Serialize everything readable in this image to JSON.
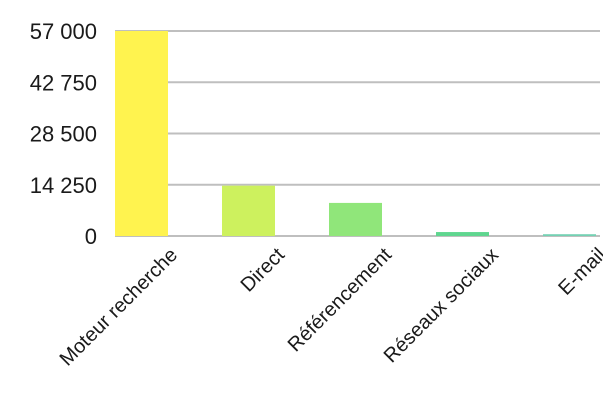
{
  "chart_data": {
    "type": "bar",
    "categories": [
      "Moteur recherche",
      "Direct",
      "Référencement",
      "Réseaux sociaux",
      "E-mail"
    ],
    "values": [
      57000,
      14000,
      9200,
      1100,
      500
    ],
    "ylim": [
      0,
      57000
    ],
    "yticks": [
      0,
      14250,
      28500,
      42750,
      57000
    ],
    "ytick_labels": [
      "0",
      "14 250",
      "28 500",
      "42 750",
      "57 000"
    ],
    "bar_colors": [
      "#fff34f",
      "#cdf15e",
      "#90e67a",
      "#5fd68f",
      "#74d1b3"
    ],
    "grid": true,
    "legend": "none",
    "title": "",
    "xlabel": "",
    "ylabel": ""
  }
}
